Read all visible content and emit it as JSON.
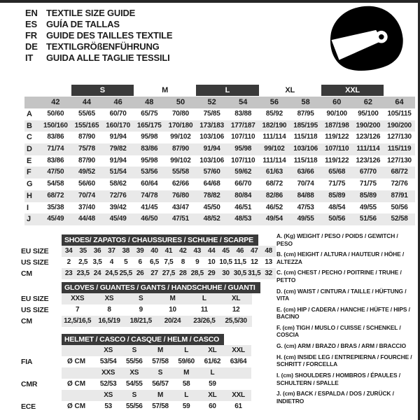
{
  "colors": {
    "dark_bar": "#3a3a3a",
    "header_gray": "#c4c4c4",
    "row_gray": "#e9e9e9",
    "text": "#1d1d1d"
  },
  "header": {
    "languages": [
      {
        "code": "EN",
        "title": "TEXTILE SIZE GUIDE"
      },
      {
        "code": "ES",
        "title": "GUÍA DE TALLAS"
      },
      {
        "code": "FR",
        "title": "GUIDE DES TAILLES TEXTILE"
      },
      {
        "code": "DE",
        "title": "TEXTILGRÖßENFÜHRUNG"
      },
      {
        "code": "IT",
        "title": "GUIDA ALLE TAGLIE TESSILI"
      }
    ],
    "helmet_icon": "racing-helmet-icon"
  },
  "size_table": {
    "bands": [
      {
        "label": "",
        "span": 1,
        "dark": false
      },
      {
        "label": "S",
        "span": 2,
        "dark": true
      },
      {
        "label": "M",
        "span": 2,
        "dark": false
      },
      {
        "label": "L",
        "span": 2,
        "dark": true
      },
      {
        "label": "XL",
        "span": 2,
        "dark": false
      },
      {
        "label": "XXL",
        "span": 2,
        "dark": true
      },
      {
        "label": "",
        "span": 1,
        "dark": false
      }
    ],
    "sizes": [
      "42",
      "44",
      "46",
      "48",
      "50",
      "52",
      "54",
      "56",
      "58",
      "60",
      "62",
      "64"
    ],
    "rows": [
      {
        "letter": "A",
        "values": [
          "50/60",
          "55/65",
          "60/70",
          "65/75",
          "70/80",
          "75/85",
          "83/88",
          "85/92",
          "87/95",
          "90/100",
          "95/100",
          "105/115"
        ]
      },
      {
        "letter": "B",
        "values": [
          "150/160",
          "155/165",
          "160/170",
          "165/175",
          "170/180",
          "173/183",
          "177/187",
          "182/190",
          "185/195",
          "187/198",
          "190/200",
          "190/200"
        ]
      },
      {
        "letter": "C",
        "values": [
          "83/86",
          "87/90",
          "91/94",
          "95/98",
          "99/102",
          "103/106",
          "107/110",
          "111/114",
          "115/118",
          "119/122",
          "123/126",
          "127/130"
        ]
      },
      {
        "letter": "D",
        "values": [
          "71/74",
          "75/78",
          "79/82",
          "83/86",
          "87/90",
          "91/94",
          "95/98",
          "99/102",
          "103/106",
          "107/110",
          "111/114",
          "115/119"
        ]
      },
      {
        "letter": "E",
        "values": [
          "83/86",
          "87/90",
          "91/94",
          "95/98",
          "99/102",
          "103/106",
          "107/110",
          "111/114",
          "115/118",
          "119/122",
          "123/126",
          "127/130"
        ]
      },
      {
        "letter": "F",
        "values": [
          "47/50",
          "49/52",
          "51/54",
          "53/56",
          "55/58",
          "57/60",
          "59/62",
          "61/63",
          "63/66",
          "65/68",
          "67/70",
          "68/72"
        ]
      },
      {
        "letter": "G",
        "values": [
          "54/58",
          "56/60",
          "58/62",
          "60/64",
          "62/66",
          "64/68",
          "66/70",
          "68/72",
          "70/74",
          "71/75",
          "71/75",
          "72/76"
        ]
      },
      {
        "letter": "H",
        "values": [
          "68/72",
          "70/74",
          "72/76",
          "74/78",
          "76/80",
          "78/82",
          "80/84",
          "82/86",
          "84/88",
          "85/89",
          "85/89",
          "87/91"
        ]
      },
      {
        "letter": "I",
        "values": [
          "35/38",
          "37/40",
          "39/42",
          "41/45",
          "43/47",
          "45/50",
          "46/51",
          "46/52",
          "47/53",
          "48/54",
          "49/55",
          "50/56"
        ]
      },
      {
        "letter": "J",
        "values": [
          "45/49",
          "44/48",
          "45/49",
          "46/50",
          "47/51",
          "48/52",
          "48/53",
          "49/54",
          "49/55",
          "50/56",
          "51/56",
          "52/58"
        ]
      }
    ]
  },
  "shoes": {
    "title": "SHOES/ ZAPATOS / CHAUSSURES / SCHUHE / SCARPE",
    "rows": [
      {
        "label": "EU SIZE",
        "gray": true,
        "values": [
          "34",
          "35",
          "36",
          "37",
          "38",
          "39",
          "40",
          "41",
          "42",
          "43",
          "44",
          "45",
          "46",
          "47",
          "48"
        ]
      },
      {
        "label": "US SIZE",
        "gray": false,
        "values": [
          "2",
          "2,5",
          "3,5",
          "4",
          "5",
          "6",
          "6,5",
          "7,5",
          "8",
          "9",
          "10",
          "10,5",
          "11,5",
          "12",
          "13"
        ]
      },
      {
        "label": "CM",
        "gray": true,
        "values": [
          "23",
          "23,5",
          "24",
          "24,5",
          "25,5",
          "26",
          "27",
          "27,5",
          "28",
          "28,5",
          "29",
          "30",
          "30,5",
          "31,5",
          "32"
        ]
      }
    ]
  },
  "gloves": {
    "title": "GLOVES / GUANTES / GANTS / HANDSCHUHE / GUANTI",
    "rows": [
      {
        "label": "EU SIZE",
        "gray": true,
        "values": [
          "XXS",
          "XS",
          "S",
          "M",
          "L",
          "XL"
        ]
      },
      {
        "label": "US SIZE",
        "gray": false,
        "values": [
          "7",
          "8",
          "9",
          "10",
          "11",
          "12"
        ]
      },
      {
        "label": "CM",
        "gray": true,
        "values": [
          "12,5/16,5",
          "16,5/19",
          "18/21,5",
          "20/24",
          "23/26,5",
          "25,5/30"
        ]
      }
    ]
  },
  "helmet": {
    "title": "HELMET / CASCO / CASQUE / HELM / CASCO",
    "rows": [
      {
        "label": "",
        "prefix": "",
        "gray": true,
        "values": [
          "XS",
          "S",
          "M",
          "L",
          "XL",
          "XXL"
        ]
      },
      {
        "label": "FIA",
        "prefix": "Ø CM",
        "gray": false,
        "values": [
          "53/54",
          "55/56",
          "57/58",
          "59/60",
          "61/62",
          "63/64"
        ]
      },
      {
        "label": "",
        "prefix": "",
        "gray": true,
        "values": [
          "XXS",
          "XS",
          "S",
          "M",
          "L",
          ""
        ]
      },
      {
        "label": "CMR",
        "prefix": "Ø CM",
        "gray": false,
        "values": [
          "52/53",
          "54/55",
          "56/57",
          "58",
          "59",
          ""
        ]
      },
      {
        "label": "",
        "prefix": "",
        "gray": true,
        "values": [
          "XS",
          "S",
          "M",
          "L",
          "XL",
          "XXL"
        ]
      },
      {
        "label": "ECE",
        "prefix": "Ø CM",
        "gray": false,
        "values": [
          "53",
          "55/56",
          "57/58",
          "59",
          "60",
          "61"
        ]
      }
    ]
  },
  "legend": {
    "items": [
      "A. (Kg) WEIGHT / PESO / POIDS / GEWITCH / PESO",
      "B. (cm) HEIGHT / ALTURA / HAUTEUR / HÖHE / ALTEZZA",
      "C. (cm) CHEST / PECHO / POITRINE / TRUHE / PETTO",
      "D. (cm) WAIST / CINTURA / TAILLE / HÜFTUNG / VITA",
      "E. (cm) HIP / CADERA / HANCHE / HÜFTE / HIPS / BACINO",
      "F. (cm) TIGH / MUSLO / CUISSE / SCHENKEL / COSCIA",
      "G. (cm) ARM / BRAZO / BRAS / ARM / BRACCIO",
      "H. (cm) INSIDE LEG / ENTREPIERNA / FOURCHE / SCHRITT / FORCELLA",
      "I. (cm) SHOULDERS / HOMBROS / ÉPAULES / SCHULTERN / SPALLE",
      "J. (cm) BACK / ESPALDA / DOS / ZURÜCK / INDIETRO"
    ]
  }
}
